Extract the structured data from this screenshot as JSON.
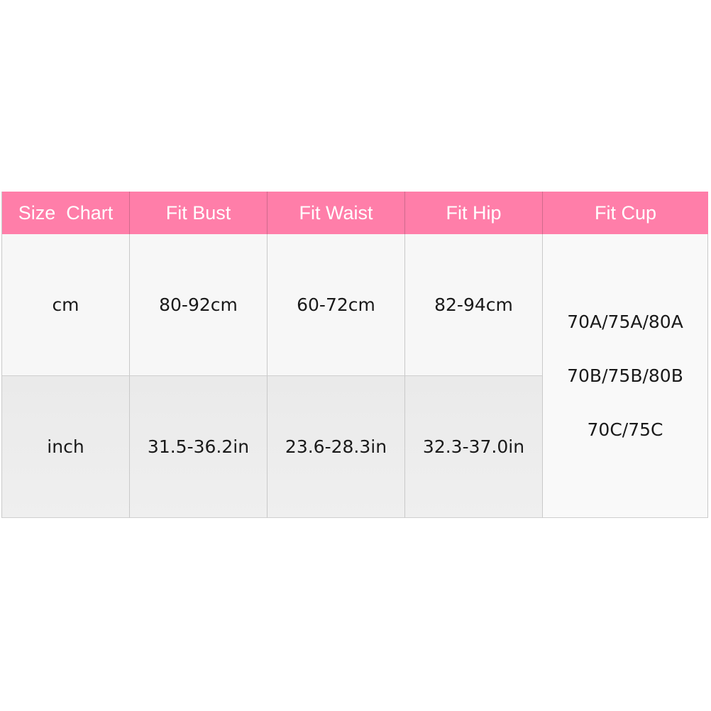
{
  "colors": {
    "header_bg": "#ff7ea9",
    "header_text": "#ffffff"
  },
  "headers": [
    "Size  Chart",
    "Fit Bust",
    "Fit Waist",
    "Fit Hip",
    "Fit Cup"
  ],
  "rows": [
    {
      "unit": "cm",
      "bust": "80-92cm",
      "waist": "60-72cm",
      "hip": "82-94cm"
    },
    {
      "unit": "inch",
      "bust": "31.5-36.2in",
      "waist": "23.6-28.3in",
      "hip": "32.3-37.0in"
    }
  ],
  "cup": [
    "70A/75A/80A",
    "70B/75B/80B",
    "70C/75C"
  ]
}
